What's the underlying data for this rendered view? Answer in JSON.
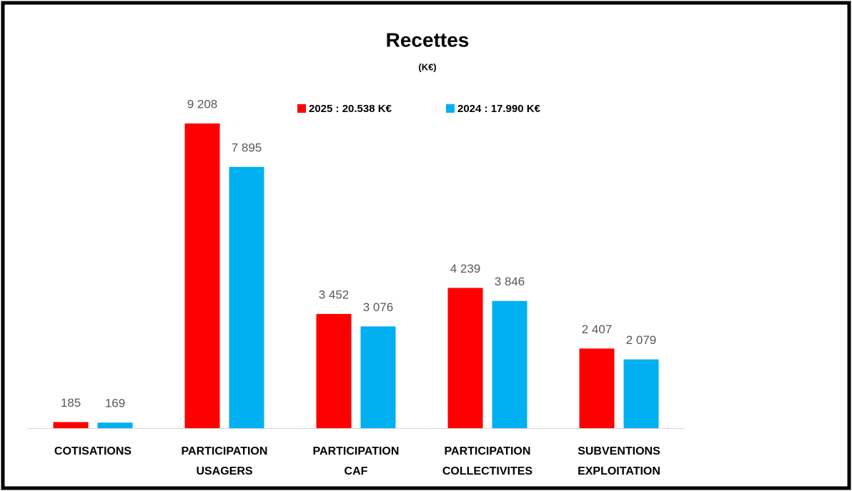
{
  "chart_data": {
    "type": "bar",
    "title": "Recettes",
    "subtitle": "(K€)",
    "categories": [
      [
        "COTISATIONS"
      ],
      [
        "PARTICIPATION",
        "USAGERS"
      ],
      [
        "PARTICIPATION",
        "CAF"
      ],
      [
        "PARTICIPATION",
        "COLLECTIVITES"
      ],
      [
        "SUBVENTIONS",
        "EXPLOITATION"
      ]
    ],
    "series": [
      {
        "name": "2025 : 20.538 K€",
        "color": "#ff0000",
        "values": [
          185,
          9208,
          3452,
          4239,
          2407
        ],
        "value_labels": [
          "185",
          "9 208",
          "3 452",
          "4 239",
          "2 407"
        ]
      },
      {
        "name": "2024 : 17.990 K€",
        "color": "#00b0f0",
        "values": [
          169,
          7895,
          3076,
          3846,
          2079
        ],
        "value_labels": [
          "169",
          "7 895",
          "3 076",
          "3 846",
          "2 079"
        ]
      }
    ],
    "legend": "top"
  }
}
